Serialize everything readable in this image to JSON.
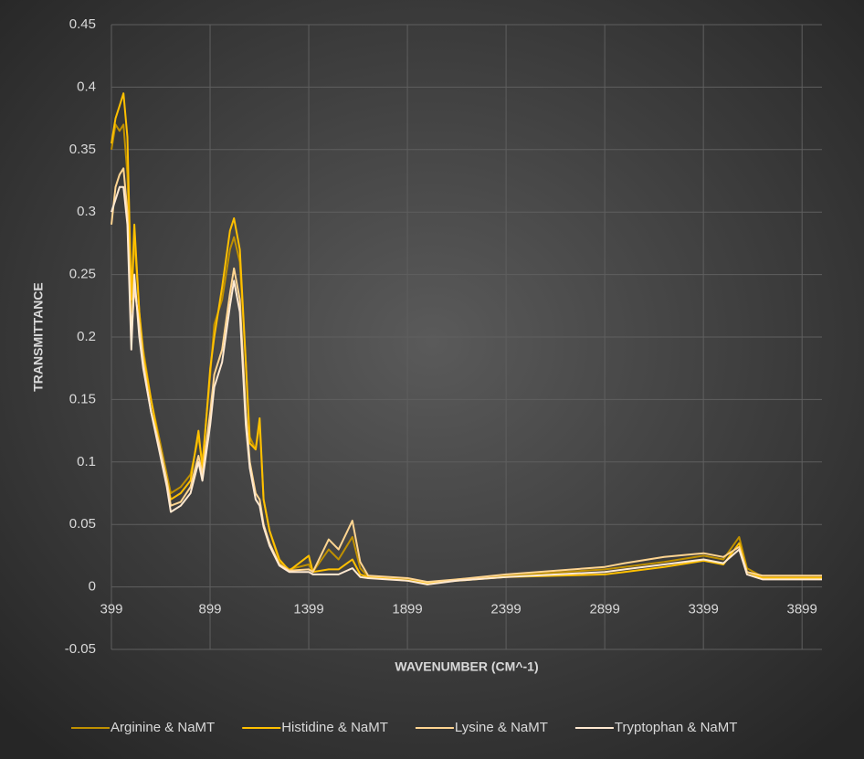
{
  "chart_data": {
    "type": "line",
    "x_label": "WAVENUMBER (CM^-1)",
    "y_label": "TRANSMITTANCE",
    "x": [
      399,
      420,
      440,
      460,
      480,
      500,
      515,
      540,
      560,
      600,
      640,
      680,
      700,
      750,
      800,
      840,
      860,
      900,
      920,
      960,
      1000,
      1020,
      1050,
      1080,
      1100,
      1130,
      1150,
      1170,
      1200,
      1250,
      1300,
      1399,
      1420,
      1500,
      1550,
      1620,
      1660,
      1700,
      1900,
      2000,
      2150,
      2400,
      2900,
      3000,
      3200,
      3400,
      3500,
      3580,
      3620,
      3700,
      4000
    ],
    "series": [
      {
        "name": "Arginine & NaMT",
        "color": "#bf9000",
        "values": [
          0.35,
          0.37,
          0.365,
          0.37,
          0.33,
          0.22,
          0.28,
          0.22,
          0.19,
          0.15,
          0.12,
          0.09,
          0.075,
          0.08,
          0.09,
          0.12,
          0.1,
          0.17,
          0.21,
          0.23,
          0.27,
          0.28,
          0.26,
          0.18,
          0.12,
          0.11,
          0.13,
          0.07,
          0.045,
          0.02,
          0.014,
          0.018,
          0.012,
          0.03,
          0.022,
          0.04,
          0.015,
          0.008,
          0.006,
          0.002,
          0.006,
          0.009,
          0.014,
          0.016,
          0.02,
          0.025,
          0.022,
          0.04,
          0.015,
          0.008,
          0.008
        ]
      },
      {
        "name": "Histidine & NaMT",
        "color": "#ffc000",
        "values": [
          0.355,
          0.375,
          0.385,
          0.395,
          0.36,
          0.23,
          0.29,
          0.22,
          0.185,
          0.15,
          0.115,
          0.085,
          0.07,
          0.075,
          0.085,
          0.125,
          0.095,
          0.175,
          0.2,
          0.24,
          0.285,
          0.295,
          0.27,
          0.18,
          0.115,
          0.11,
          0.135,
          0.07,
          0.045,
          0.022,
          0.013,
          0.025,
          0.012,
          0.014,
          0.014,
          0.022,
          0.01,
          0.008,
          0.005,
          0.003,
          0.005,
          0.008,
          0.01,
          0.012,
          0.016,
          0.021,
          0.018,
          0.035,
          0.012,
          0.007,
          0.007
        ]
      },
      {
        "name": "Lysine & NaMT",
        "color": "#ffd591",
        "values": [
          0.29,
          0.32,
          0.33,
          0.335,
          0.3,
          0.2,
          0.24,
          0.21,
          0.18,
          0.14,
          0.115,
          0.085,
          0.065,
          0.068,
          0.08,
          0.105,
          0.09,
          0.14,
          0.17,
          0.19,
          0.235,
          0.255,
          0.23,
          0.14,
          0.1,
          0.075,
          0.07,
          0.05,
          0.035,
          0.018,
          0.013,
          0.014,
          0.012,
          0.038,
          0.03,
          0.053,
          0.02,
          0.009,
          0.007,
          0.004,
          0.006,
          0.01,
          0.016,
          0.019,
          0.024,
          0.027,
          0.024,
          0.032,
          0.012,
          0.009,
          0.009
        ]
      },
      {
        "name": "Tryptophan & NaMT",
        "color": "#ffe9d1",
        "values": [
          0.3,
          0.31,
          0.32,
          0.32,
          0.29,
          0.19,
          0.25,
          0.2,
          0.175,
          0.14,
          0.11,
          0.08,
          0.06,
          0.065,
          0.075,
          0.1,
          0.085,
          0.13,
          0.16,
          0.18,
          0.225,
          0.245,
          0.22,
          0.13,
          0.095,
          0.07,
          0.065,
          0.048,
          0.033,
          0.017,
          0.012,
          0.012,
          0.01,
          0.01,
          0.01,
          0.015,
          0.008,
          0.007,
          0.005,
          0.002,
          0.005,
          0.008,
          0.012,
          0.014,
          0.018,
          0.022,
          0.019,
          0.03,
          0.01,
          0.006,
          0.006
        ]
      }
    ],
    "xlim": [
      399,
      4000
    ],
    "xticks": [
      399,
      899,
      1399,
      1899,
      2399,
      2899,
      3399,
      3899
    ],
    "ylim": [
      -0.05,
      0.45
    ],
    "yticks": [
      -0.05,
      0,
      0.05,
      0.1,
      0.15,
      0.2,
      0.25,
      0.3,
      0.35,
      0.4,
      0.45
    ],
    "grid": true,
    "legend": "bottom"
  }
}
